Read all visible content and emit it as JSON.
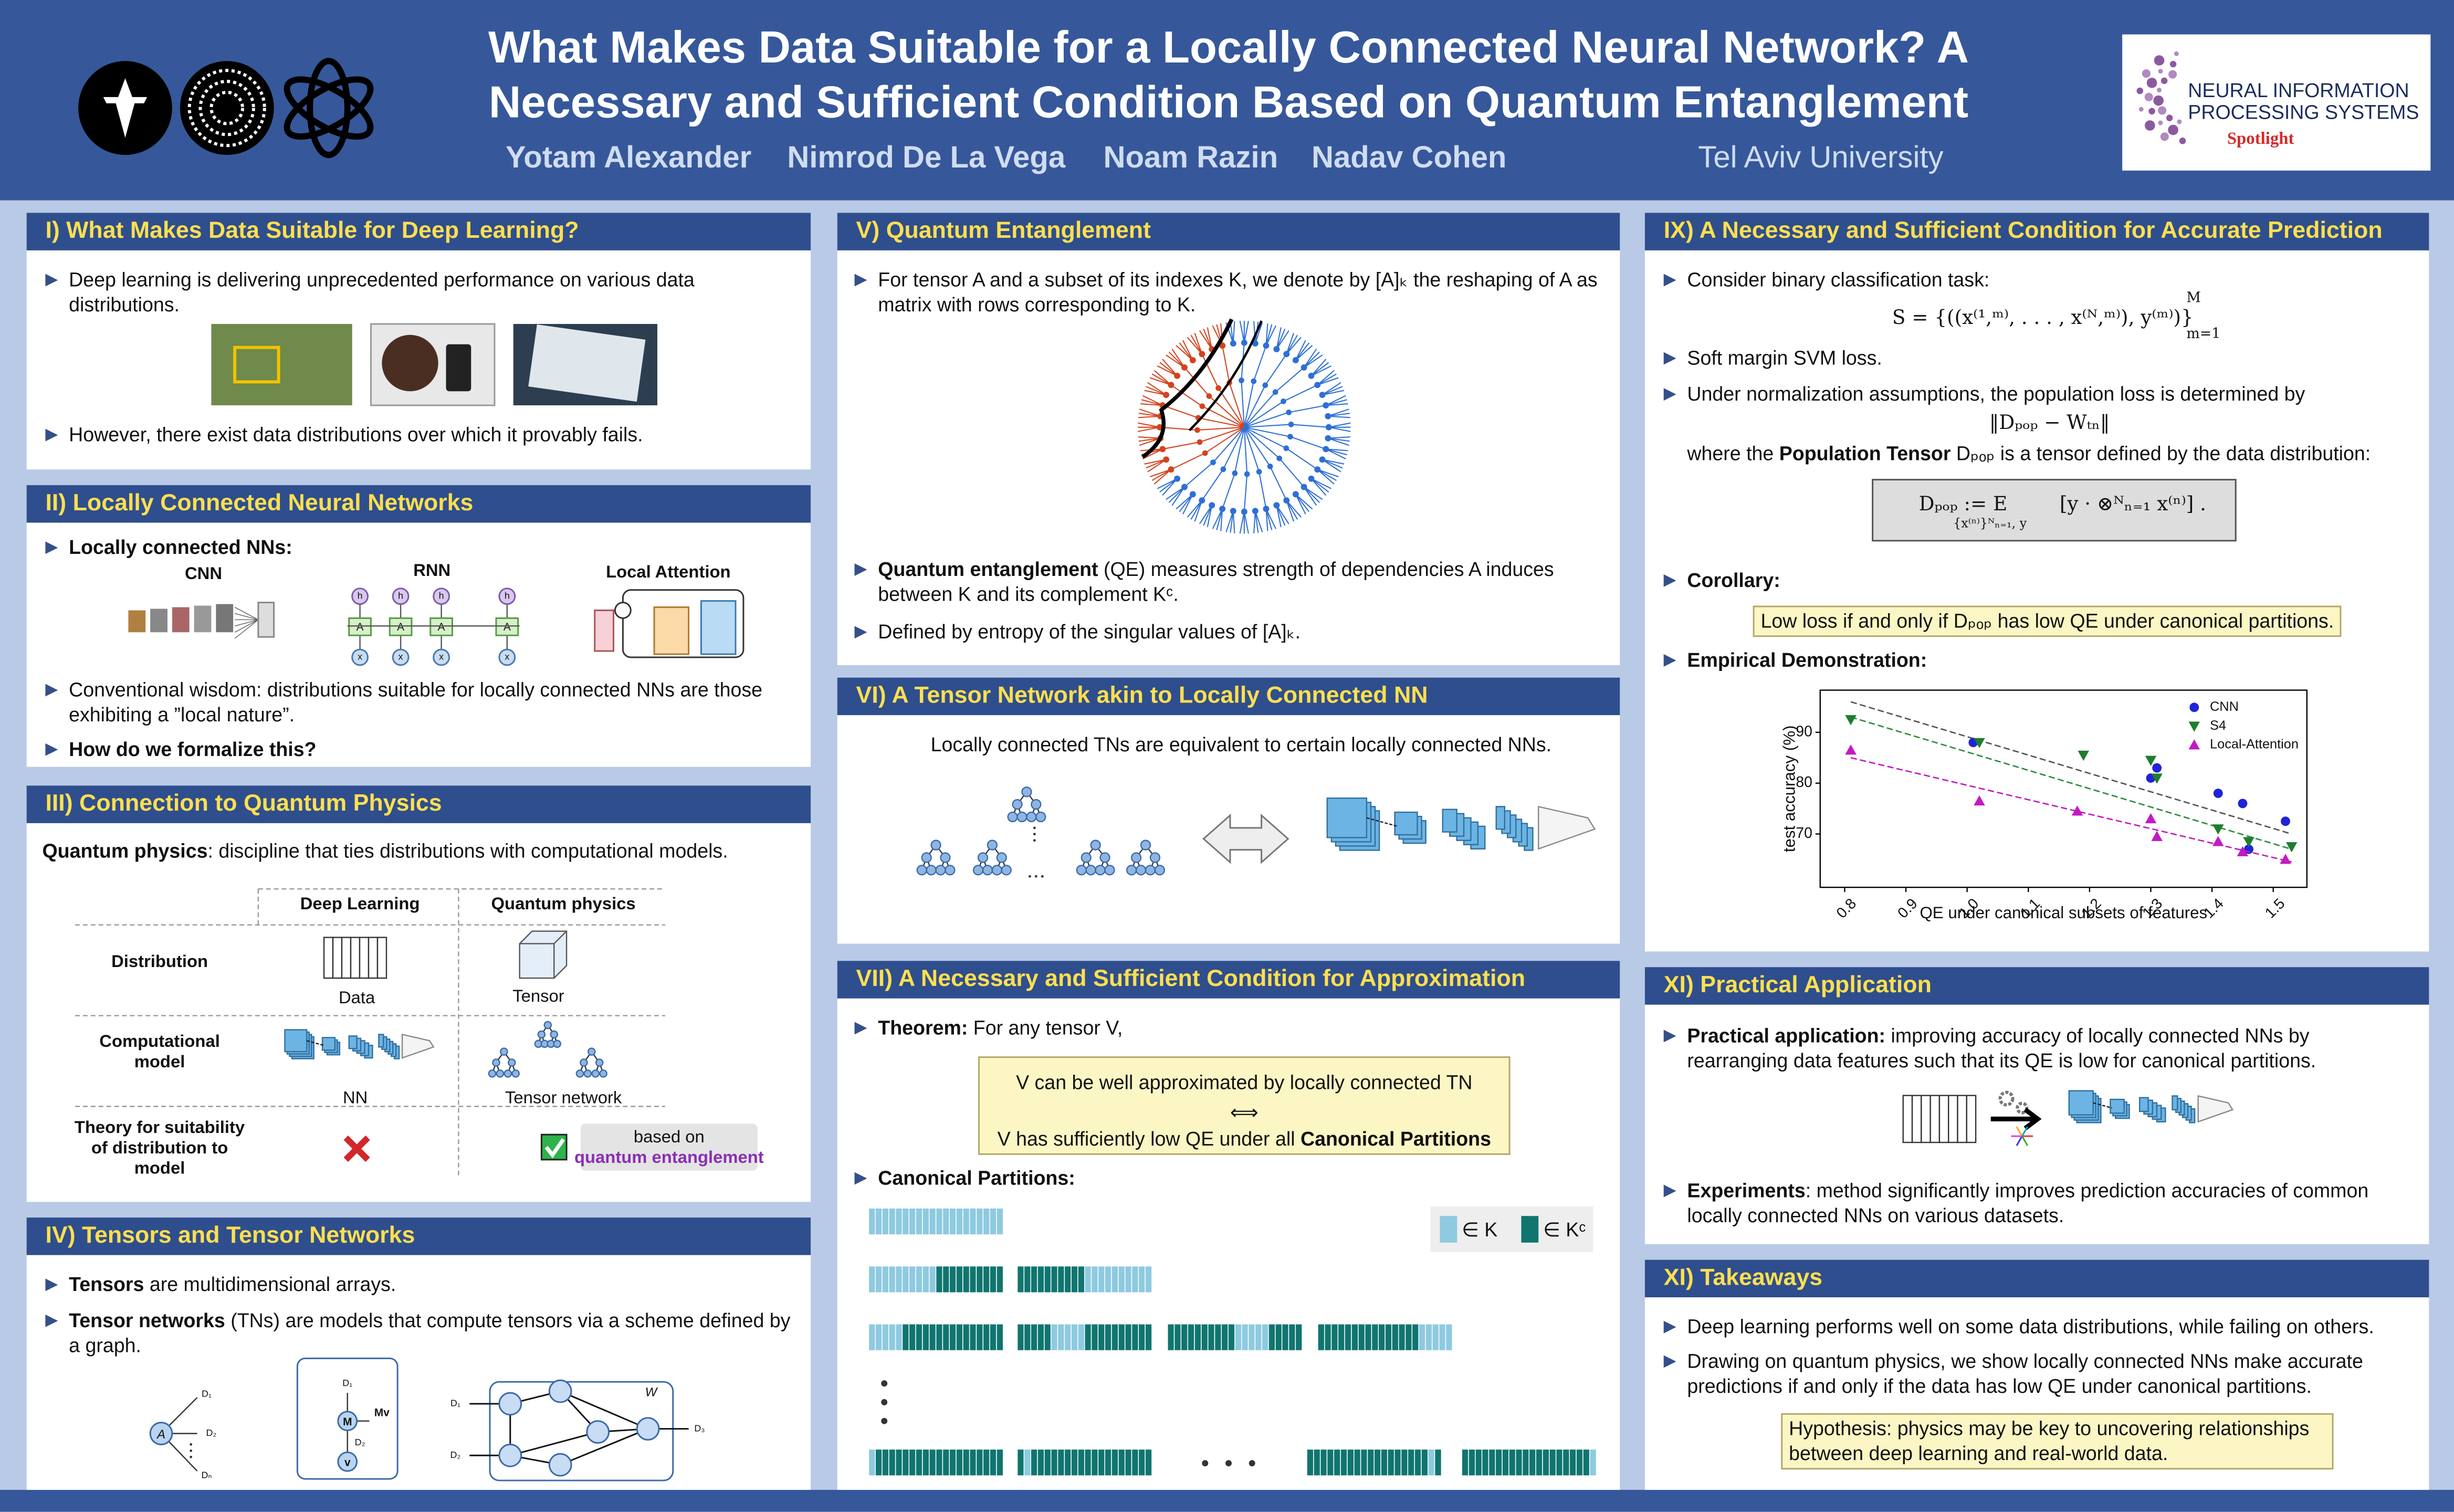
{
  "header": {
    "title_lines": [
      "What Makes Data Suitable for a Locally Connected Neural Network? A",
      "Necessary and Sufficient Condition Based on Quantum Entanglement"
    ],
    "authors": [
      "Yotam Alexander",
      "Nimrod De La Vega",
      "Noam Razin",
      "Nadav Cohen"
    ],
    "affiliation": "Tel Aviv University",
    "badge": {
      "lines": [
        "NEURAL INFORMATION",
        "PROCESSING SYSTEMS"
      ],
      "tag": "Spotlight"
    }
  },
  "sections": [
    {
      "title": "I) What Makes Data Suitable for Deep Learning?",
      "bullets": [
        {
          "text": "Deep learning is delivering unprecedented performance on various data distributions."
        },
        {
          "text": "However, there exist data distributions over which it provably fails."
        }
      ]
    },
    {
      "title": "II) Locally Connected Neural Networks",
      "bullets": [
        {
          "bold": "Locally connected NNs:"
        },
        {
          "text": "Conventional wisdom: distributions suitable for locally connected NNs are those exhibiting a ”local nature”."
        },
        {
          "bold": "How do we formalize this?"
        }
      ],
      "figure_labels": [
        "CNN",
        "RNN",
        "Local Attention"
      ],
      "rnn_nodes": {
        "hidden": "h",
        "cell": "A",
        "input": "x"
      }
    },
    {
      "title": "III) Connection to Quantum Physics",
      "intro": {
        "bold": "Quantum physics",
        "text": ": discipline that ties distributions with computational models."
      },
      "table": {
        "columns": [
          "Deep Learning",
          "Quantum physics"
        ],
        "rows": [
          {
            "label": "Distribution",
            "cells": [
              "Data",
              "Tensor"
            ]
          },
          {
            "label": "Computational model",
            "cells": [
              "NN",
              "Tensor network"
            ]
          },
          {
            "label": "Theory for suitability of distribution to model",
            "note": [
              "based on",
              "quantum entanglement"
            ]
          }
        ]
      }
    },
    {
      "title": "IV) Tensors and Tensor Networks",
      "bullets": [
        {
          "bold": "Tensors",
          "text": " are multidimensional arrays."
        },
        {
          "bold": "Tensor networks",
          "text": " (TNs) are models that compute tensors via a scheme defined by a graph."
        }
      ],
      "figure_labels": {
        "a": {
          "tensor": "A",
          "modes": [
            "D₁",
            "D₂",
            "Dₙ"
          ]
        },
        "b": {
          "modes": [
            "D₁",
            "D₂"
          ],
          "matrix": "M",
          "vector": "v",
          "product": "Mv"
        },
        "c": {
          "modes": [
            "D₁",
            "D₂",
            "D₃"
          ],
          "name": "W"
        }
      }
    },
    {
      "title": "V) Quantum Entanglement",
      "bullets": [
        {
          "text": "For tensor A and a subset of its indexes K, we denote by [A]ₖ the reshaping of A as matrix with rows corresponding to K."
        },
        {
          "bold": "Quantum entanglement",
          "text": " (QE) measures strength of dependencies A induces between K and its complement Kᶜ."
        },
        {
          "text": "Defined by entropy of the singular values of [A]ₖ."
        }
      ]
    },
    {
      "title": "VI) A Tensor Network akin to Locally Connected NN",
      "text": "Locally connected TNs are equivalent to certain locally connected NNs."
    },
    {
      "title": "VII) A Necessary and Sufficient Condition for Approximation",
      "bullets": [
        {
          "bold": "Theorem:",
          "text": " For any tensor V,"
        },
        {
          "bold": "Canonical Partitions:"
        }
      ],
      "theorem_box": {
        "line1": "V can be well approximated by locally connected TN",
        "iff": "⟺",
        "line2": "V has sufficiently low QE under all ",
        "line2_bold": "Canonical Partitions"
      },
      "legend": [
        "∈ K",
        "∈ Kᶜ"
      ]
    },
    {
      "title": "IX) A Necessary and Sufficient Condition for Accurate Prediction",
      "bullets": [
        {
          "text": "Consider binary classification task:"
        },
        {
          "text": "Soft margin SVM loss."
        },
        {
          "text": "Under normalization assumptions, the population loss is determined by"
        },
        {
          "bold": "Corollary:"
        },
        {
          "bold": "Empirical Demonstration:"
        }
      ],
      "task_formula": {
        "body": "S = {((x⁽¹,ᵐ⁾, . . . , x⁽ᴺ,ᵐ⁾), y⁽ᵐ⁾)}",
        "upper": "M",
        "lower": "m=1"
      },
      "loss_formula": "‖Dₚₒₚ − Wₜₙ‖",
      "where": {
        "text": "where the ",
        "bold": "Population Tensor",
        "rest": " Dₚₒₚ is a tensor defined by the data distribution:"
      },
      "tensor_formula": {
        "lhs": "Dₚₒₚ := E",
        "under": "{x⁽ⁿ⁾}ᴺₙ₌₁, y",
        "rhs": "[y · ⊗ᴺₙ₌₁ x⁽ⁿ⁾] ."
      },
      "corollary": "Low loss if and only if Dₚₒₚ has low QE under canonical partitions."
    },
    {
      "title": "XI) Practical Application",
      "bullets": [
        {
          "bold": "Practical application:",
          "text": " improving accuracy of locally connected NNs by rearranging data features such that its QE is low for canonical partitions."
        },
        {
          "bold": "Experiments",
          "text": ": method significantly improves prediction accuracies of common locally connected NNs on various datasets."
        }
      ]
    },
    {
      "title": "XI) Takeaways",
      "bullets": [
        {
          "text": "Deep learning performs well on some data distributions, while failing on others."
        },
        {
          "text": "Drawing on quantum physics, we show locally connected NNs make accurate predictions if and only if the data has low QE under canonical partitions."
        }
      ],
      "hypothesis": "Hypothesis: physics may be key to uncovering relationships between deep learning and real-world data."
    }
  ],
  "chart_data": {
    "type": "scatter",
    "xlabel": "QE under canonical subsets of features",
    "ylabel": "test accuracy (%)",
    "xlim": [
      0.76,
      1.555
    ],
    "ylim": [
      59.5,
      98.3
    ],
    "xticks": [
      0.8,
      0.9,
      {
        "value": 1,
        "label": "1.0"
      },
      1.1,
      1.2,
      1.3,
      1.4,
      1.5
    ],
    "yticks": [
      70,
      80,
      90
    ],
    "legend": "upper right",
    "series": [
      {
        "name": "CNN",
        "color": "#1f24d6",
        "marker": "circle",
        "x": [
          1.01,
          1.3,
          1.31,
          1.41,
          1.45,
          1.52,
          1.46
        ],
        "values": [
          88,
          81,
          83,
          78,
          76,
          72.5,
          67
        ],
        "trend": {
          "color": "#555555",
          "x": [
            0.81,
            1.53
          ],
          "values": [
            96,
            70
          ]
        }
      },
      {
        "name": "S4",
        "color": "#1e7d2e",
        "marker": "triangle-down",
        "x": [
          0.81,
          1.02,
          1.19,
          1.3,
          1.31,
          1.41,
          1.46,
          1.53
        ],
        "values": [
          92.5,
          88,
          85.5,
          84.5,
          81,
          71,
          68.5,
          67.5
        ],
        "trend": {
          "color": "#2e8b3e",
          "x": [
            0.81,
            1.53
          ],
          "values": [
            93,
            67
          ]
        }
      },
      {
        "name": "Local-Attention",
        "color": "#c21ac2",
        "marker": "triangle-up",
        "x": [
          0.81,
          1.02,
          1.18,
          1.3,
          1.31,
          1.41,
          1.45,
          1.52
        ],
        "values": [
          86.5,
          76.5,
          74.5,
          73,
          69.5,
          68.5,
          66.5,
          65
        ],
        "trend": {
          "color": "#c21ac2",
          "x": [
            0.81,
            1.53
          ],
          "values": [
            85,
            64.5
          ]
        }
      }
    ]
  }
}
